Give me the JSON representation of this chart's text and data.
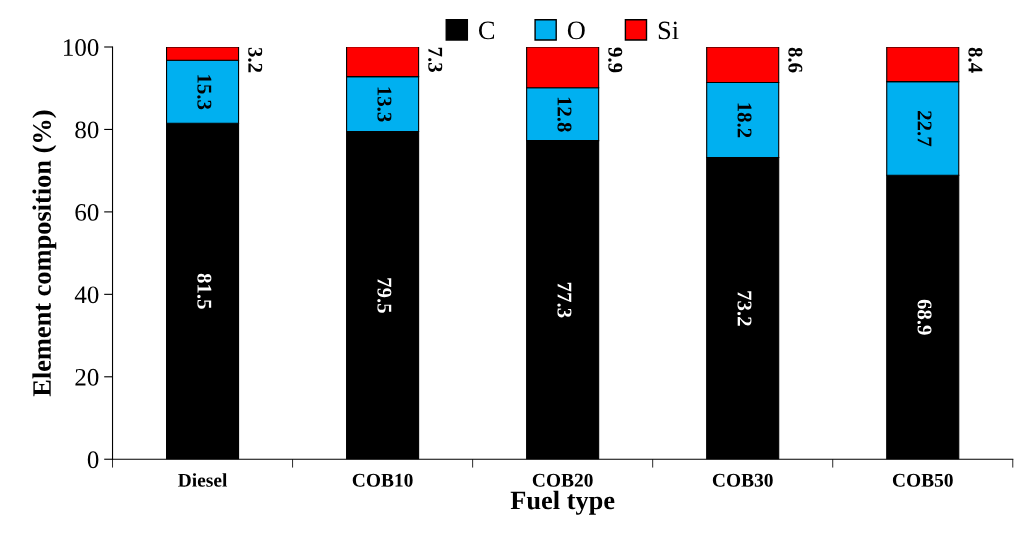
{
  "chart_data": {
    "type": "bar",
    "stacked": true,
    "xlabel": "Fuel type",
    "ylabel": "Element composition (%)",
    "categories": [
      "Diesel",
      "COB10",
      "COB20",
      "COB30",
      "COB50"
    ],
    "series": [
      {
        "name": "C",
        "color": "#000000",
        "values": [
          81.5,
          79.5,
          77.3,
          73.2,
          68.9
        ]
      },
      {
        "name": "O",
        "color": "#00b0f0",
        "values": [
          15.3,
          13.3,
          12.8,
          18.2,
          22.7
        ]
      },
      {
        "name": "Si",
        "color": "#ff0000",
        "values": [
          3.2,
          7.3,
          9.9,
          8.6,
          8.4
        ]
      }
    ],
    "ylim": [
      0,
      100
    ],
    "yticks": [
      0,
      20,
      40,
      60,
      80,
      100
    ],
    "data_labels": true,
    "legend": "top",
    "grid": false
  }
}
